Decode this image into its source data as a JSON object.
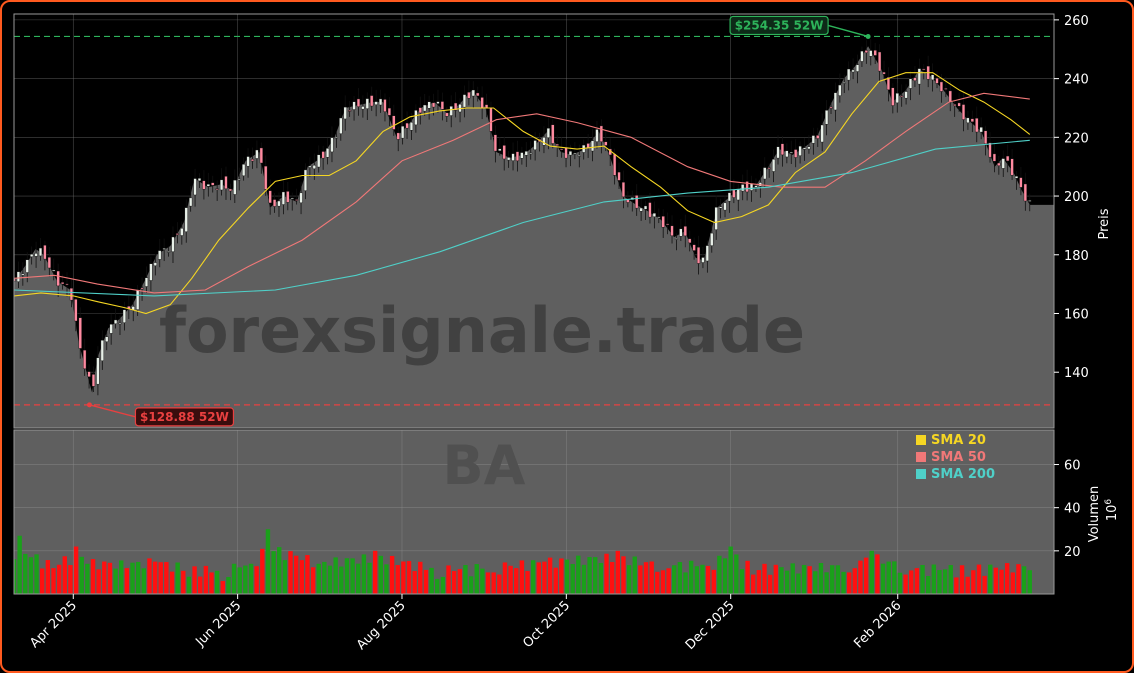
{
  "colors": {
    "background": "#000000",
    "panel": "#5f5f5f",
    "frame": "#ff5a1f",
    "grid": "#7a7a7a",
    "up": "#1aa01a",
    "down": "#ff1010",
    "sma20": "#f5d623",
    "sma50": "#f07878",
    "sma200": "#4fd0c8",
    "high_marker": "#2db35a",
    "low_marker": "#e84040"
  },
  "chart_data": [
    {
      "type": "line",
      "title": "",
      "subtitle": "BA",
      "watermark": "forexsignale.trade",
      "ylabel": "Preis",
      "ylim": [
        121,
        262
      ],
      "yticks": [
        "140",
        "160",
        "180",
        "200",
        "220",
        "240",
        "260"
      ],
      "x_range": [
        "2025-03-10",
        "2026-03-31"
      ],
      "x_ticks": [
        {
          "date": "2025-04-01",
          "label": "Apr 2025"
        },
        {
          "date": "2025-06-01",
          "label": "Jun 2025"
        },
        {
          "date": "2025-08-01",
          "label": "Aug 2025"
        },
        {
          "date": "2025-10-01",
          "label": "Oct 2025"
        },
        {
          "date": "2025-12-01",
          "label": "Dec 2025"
        },
        {
          "date": "2026-02-01",
          "label": "Feb 2026"
        }
      ],
      "grid": true,
      "legend_position": "bottom-right",
      "close_series": [
        [
          "2025-03-10",
          171
        ],
        [
          "2025-03-14",
          176
        ],
        [
          "2025-03-18",
          182
        ],
        [
          "2025-03-21",
          180
        ],
        [
          "2025-03-26",
          171
        ],
        [
          "2025-03-31",
          168
        ],
        [
          "2025-04-03",
          150
        ],
        [
          "2025-04-08",
          133
        ],
        [
          "2025-04-10",
          145
        ],
        [
          "2025-04-14",
          155
        ],
        [
          "2025-04-18",
          158
        ],
        [
          "2025-04-23",
          163
        ],
        [
          "2025-04-28",
          172
        ],
        [
          "2025-05-02",
          180
        ],
        [
          "2025-05-07",
          183
        ],
        [
          "2025-05-12",
          191
        ],
        [
          "2025-05-16",
          206
        ],
        [
          "2025-05-21",
          203
        ],
        [
          "2025-05-26",
          204
        ],
        [
          "2025-05-30",
          202
        ],
        [
          "2025-06-04",
          212
        ],
        [
          "2025-06-09",
          215
        ],
        [
          "2025-06-13",
          196
        ],
        [
          "2025-06-18",
          200
        ],
        [
          "2025-06-23",
          198
        ],
        [
          "2025-06-27",
          210
        ],
        [
          "2025-07-02",
          213
        ],
        [
          "2025-07-07",
          220
        ],
        [
          "2025-07-11",
          230
        ],
        [
          "2025-07-16",
          231
        ],
        [
          "2025-07-21",
          232
        ],
        [
          "2025-07-25",
          232
        ],
        [
          "2025-07-30",
          220
        ],
        [
          "2025-08-04",
          225
        ],
        [
          "2025-08-08",
          230
        ],
        [
          "2025-08-13",
          232
        ],
        [
          "2025-08-18",
          228
        ],
        [
          "2025-08-22",
          231
        ],
        [
          "2025-08-27",
          236
        ],
        [
          "2025-09-01",
          230
        ],
        [
          "2025-09-05",
          215
        ],
        [
          "2025-09-10",
          213
        ],
        [
          "2025-09-15",
          214
        ],
        [
          "2025-09-19",
          217
        ],
        [
          "2025-09-24",
          222
        ],
        [
          "2025-09-29",
          215
        ],
        [
          "2025-10-03",
          214
        ],
        [
          "2025-10-08",
          216
        ],
        [
          "2025-10-13",
          222
        ],
        [
          "2025-10-17",
          214
        ],
        [
          "2025-10-22",
          200
        ],
        [
          "2025-10-27",
          197
        ],
        [
          "2025-10-31",
          195
        ],
        [
          "2025-11-05",
          192
        ],
        [
          "2025-11-10",
          186
        ],
        [
          "2025-11-14",
          188
        ],
        [
          "2025-11-18",
          179
        ],
        [
          "2025-11-21",
          178
        ],
        [
          "2025-11-26",
          196
        ],
        [
          "2025-12-01",
          200
        ],
        [
          "2025-12-05",
          203
        ],
        [
          "2025-12-10",
          203
        ],
        [
          "2025-12-15",
          210
        ],
        [
          "2025-12-19",
          216
        ],
        [
          "2025-12-24",
          214
        ],
        [
          "2025-12-29",
          217
        ],
        [
          "2026-01-02",
          220
        ],
        [
          "2026-01-07",
          231
        ],
        [
          "2026-01-12",
          240
        ],
        [
          "2026-01-16",
          244
        ],
        [
          "2026-01-21",
          251
        ],
        [
          "2026-01-26",
          243
        ],
        [
          "2026-01-30",
          232
        ],
        [
          "2026-02-04",
          236
        ],
        [
          "2026-02-09",
          243
        ],
        [
          "2026-02-13",
          241
        ],
        [
          "2026-02-18",
          236
        ],
        [
          "2026-02-23",
          230
        ],
        [
          "2026-02-27",
          226
        ],
        [
          "2026-03-04",
          222
        ],
        [
          "2026-03-09",
          210
        ],
        [
          "2026-03-12",
          213
        ],
        [
          "2026-03-16",
          208
        ],
        [
          "2026-03-19",
          202
        ],
        [
          "2026-03-22",
          197
        ],
        [
          "2026-03-31",
          197
        ]
      ],
      "series": [
        {
          "name": "SMA 20",
          "color_key": "sma20",
          "points": [
            [
              "2025-03-10",
              166
            ],
            [
              "2025-03-20",
              167
            ],
            [
              "2025-04-01",
              166
            ],
            [
              "2025-04-10",
              164
            ],
            [
              "2025-04-20",
              162
            ],
            [
              "2025-04-28",
              160
            ],
            [
              "2025-05-07",
              163
            ],
            [
              "2025-05-15",
              172
            ],
            [
              "2025-05-25",
              185
            ],
            [
              "2025-06-05",
              196
            ],
            [
              "2025-06-15",
              205
            ],
            [
              "2025-06-25",
              207
            ],
            [
              "2025-07-05",
              207
            ],
            [
              "2025-07-15",
              212
            ],
            [
              "2025-07-25",
              222
            ],
            [
              "2025-08-04",
              227
            ],
            [
              "2025-08-15",
              229
            ],
            [
              "2025-08-25",
              230
            ],
            [
              "2025-09-04",
              230
            ],
            [
              "2025-09-15",
              222
            ],
            [
              "2025-09-25",
              217
            ],
            [
              "2025-10-05",
              216
            ],
            [
              "2025-10-15",
              217
            ],
            [
              "2025-10-25",
              210
            ],
            [
              "2025-11-05",
              203
            ],
            [
              "2025-11-15",
              195
            ],
            [
              "2025-11-25",
              191
            ],
            [
              "2025-12-05",
              193
            ],
            [
              "2025-12-15",
              197
            ],
            [
              "2025-12-25",
              208
            ],
            [
              "2026-01-05",
              215
            ],
            [
              "2026-01-15",
              228
            ],
            [
              "2026-01-25",
              239
            ],
            [
              "2026-02-04",
              242
            ],
            [
              "2026-02-14",
              242
            ],
            [
              "2026-02-24",
              236
            ],
            [
              "2026-03-05",
              232
            ],
            [
              "2026-03-15",
              226
            ],
            [
              "2026-03-22",
              221
            ]
          ]
        },
        {
          "name": "SMA 50",
          "color_key": "sma50",
          "points": [
            [
              "2025-03-10",
              172
            ],
            [
              "2025-03-25",
              173
            ],
            [
              "2025-04-10",
              170
            ],
            [
              "2025-05-01",
              167
            ],
            [
              "2025-05-20",
              168
            ],
            [
              "2025-06-05",
              176
            ],
            [
              "2025-06-25",
              185
            ],
            [
              "2025-07-15",
              198
            ],
            [
              "2025-08-01",
              212
            ],
            [
              "2025-08-20",
              219
            ],
            [
              "2025-09-05",
              226
            ],
            [
              "2025-09-20",
              228
            ],
            [
              "2025-10-05",
              225
            ],
            [
              "2025-10-25",
              220
            ],
            [
              "2025-11-15",
              210
            ],
            [
              "2025-12-01",
              205
            ],
            [
              "2025-12-20",
              203
            ],
            [
              "2026-01-05",
              203
            ],
            [
              "2026-01-20",
              212
            ],
            [
              "2026-02-04",
              222
            ],
            [
              "2026-02-20",
              232
            ],
            [
              "2026-03-05",
              235
            ],
            [
              "2026-03-22",
              233
            ]
          ]
        },
        {
          "name": "SMA 200",
          "color_key": "sma200",
          "points": [
            [
              "2025-03-10",
              168
            ],
            [
              "2025-05-01",
              166
            ],
            [
              "2025-06-15",
              168
            ],
            [
              "2025-07-15",
              173
            ],
            [
              "2025-08-15",
              181
            ],
            [
              "2025-09-15",
              191
            ],
            [
              "2025-10-15",
              198
            ],
            [
              "2025-11-15",
              201
            ],
            [
              "2025-12-15",
              203
            ],
            [
              "2026-01-15",
              208
            ],
            [
              "2026-02-15",
              216
            ],
            [
              "2026-03-22",
              219
            ]
          ]
        }
      ],
      "annotations": [
        {
          "label": "$254.35 52W",
          "date": "2026-01-21",
          "value": 254.35,
          "color_key": "high_marker"
        },
        {
          "label": "$128.88 52W",
          "date": "2025-04-07",
          "value": 128.88,
          "color_key": "low_marker"
        }
      ]
    },
    {
      "type": "bar",
      "title": "",
      "ylabel": "Volumen",
      "ylabel_unit": "10^6",
      "ylim": [
        0,
        76
      ],
      "yticks": [
        "20",
        "40",
        "60"
      ],
      "volume_series": [
        [
          "2025-03-12",
          27,
          1
        ],
        [
          "2025-03-24",
          12,
          0
        ],
        [
          "2025-04-03",
          22,
          0
        ],
        [
          "2025-04-07",
          14,
          1
        ],
        [
          "2025-04-21",
          12,
          0
        ],
        [
          "2025-05-01",
          15,
          0
        ],
        [
          "2025-05-14",
          8,
          1
        ],
        [
          "2025-05-26",
          6,
          0
        ],
        [
          "2025-06-06",
          14,
          1
        ],
        [
          "2025-06-12",
          30,
          1
        ],
        [
          "2025-07-02",
          14,
          1
        ],
        [
          "2025-07-23",
          20,
          0
        ],
        [
          "2025-08-15",
          7,
          1
        ],
        [
          "2025-09-03",
          10,
          0
        ],
        [
          "2025-09-12",
          12,
          0
        ],
        [
          "2025-09-23",
          15,
          0
        ],
        [
          "2025-10-20",
          20,
          0
        ],
        [
          "2025-11-05",
          11,
          0
        ],
        [
          "2025-11-22",
          13,
          0
        ],
        [
          "2025-12-01",
          22,
          1
        ],
        [
          "2025-12-10",
          9,
          0
        ],
        [
          "2026-01-13",
          10,
          0
        ],
        [
          "2026-01-23",
          20,
          1
        ],
        [
          "2026-02-04",
          9,
          0
        ],
        [
          "2026-02-27",
          8,
          0
        ],
        [
          "2026-03-15",
          10,
          0
        ]
      ]
    }
  ]
}
